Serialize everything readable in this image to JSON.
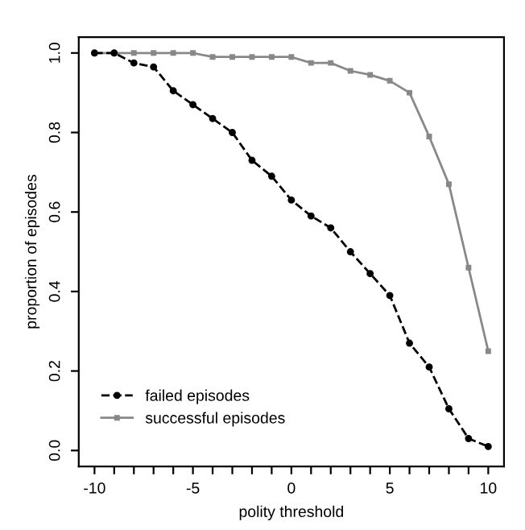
{
  "chart_data": {
    "type": "line",
    "xlabel": "polity threshold",
    "ylabel": "proportion of episodes",
    "x": [
      -10,
      -9,
      -8,
      -7,
      -6,
      -5,
      -4,
      -3,
      -2,
      -1,
      0,
      1,
      2,
      3,
      4,
      5,
      6,
      7,
      8,
      9,
      10
    ],
    "series": [
      {
        "name": "failed episodes",
        "color": "#000000",
        "marker": "circle",
        "line_style": "dashed",
        "values": [
          1.0,
          1.0,
          0.975,
          0.965,
          0.905,
          0.87,
          0.835,
          0.8,
          0.73,
          0.69,
          0.63,
          0.59,
          0.56,
          0.5,
          0.445,
          0.39,
          0.27,
          0.21,
          0.105,
          0.03,
          0.01
        ]
      },
      {
        "name": "successful episodes",
        "color": "#888888",
        "marker": "square",
        "line_style": "solid",
        "values": [
          1.0,
          1.0,
          1.0,
          1.0,
          1.0,
          1.0,
          0.99,
          0.99,
          0.99,
          0.99,
          0.99,
          0.975,
          0.975,
          0.955,
          0.945,
          0.93,
          0.9,
          0.79,
          0.67,
          0.46,
          0.25
        ]
      }
    ],
    "xlim": [
      -10.8,
      10.8
    ],
    "ylim": [
      -0.04,
      1.04
    ],
    "xticks": [
      -10,
      {
        "value": -9,
        "label": null
      },
      {
        "value": -8,
        "label": null
      },
      {
        "value": -7,
        "label": null
      },
      {
        "value": -6,
        "label": null
      },
      -5,
      {
        "value": -4,
        "label": null
      },
      {
        "value": -3,
        "label": null
      },
      {
        "value": -2,
        "label": null
      },
      {
        "value": -1,
        "label": null
      },
      0,
      {
        "value": 1,
        "label": null
      },
      {
        "value": 2,
        "label": null
      },
      {
        "value": 3,
        "label": null
      },
      {
        "value": 4,
        "label": null
      },
      5,
      {
        "value": 6,
        "label": null
      },
      {
        "value": 7,
        "label": null
      },
      {
        "value": 8,
        "label": null
      },
      {
        "value": 9,
        "label": null
      },
      10
    ],
    "yticks": [
      {
        "value": 0,
        "label": "0.0"
      },
      0.2,
      0.4,
      0.6,
      0.8,
      {
        "value": 1,
        "label": "1.0"
      }
    ],
    "legend": "bottom left",
    "grid": false
  }
}
